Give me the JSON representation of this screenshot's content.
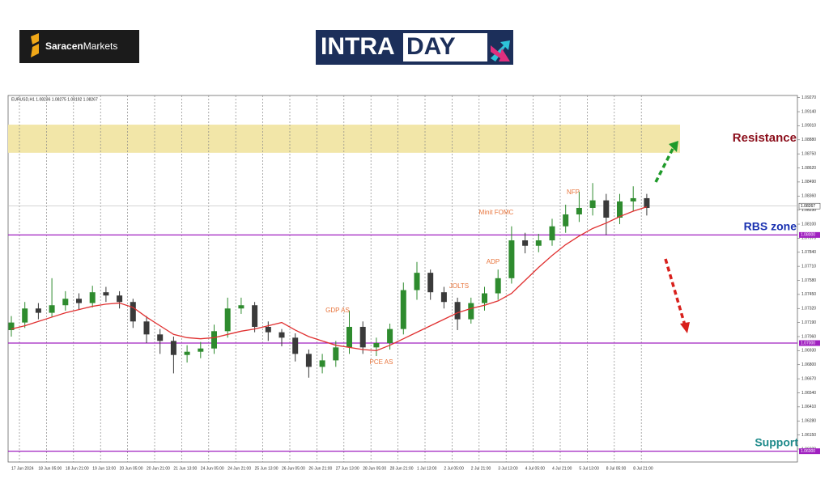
{
  "brand": {
    "left": "Saracen",
    "right": "Markets"
  },
  "banner": {
    "left": "INTRA",
    "right": "DAY"
  },
  "chart_data": {
    "type": "candlestick",
    "header": "EURUSD,H1  1.08236 1.08275 1.08192 1.08267",
    "categories": [
      "17 Jun 2024",
      null,
      "18 Jun 05:00",
      null,
      "18 Jun 21:00",
      null,
      "19 Jun 13:00",
      null,
      "20 Jun 05:00",
      null,
      "20 Jun 21:00",
      null,
      "21 Jun 13:00",
      null,
      "24 Jun 05:00",
      null,
      "24 Jun 21:00",
      null,
      "25 Jun 13:00",
      null,
      "26 Jun 05:00",
      null,
      "26 Jun 21:00",
      null,
      "27 Jun 13:00",
      null,
      "28 Jun 05:00",
      null,
      "28 Jun 21:00",
      null,
      "1 Jul 13:00",
      null,
      "2 Jul 05:00",
      null,
      "2 Jul 21:00",
      null,
      "3 Jul 13:00",
      null,
      "4 Jul 05:00",
      null,
      "4 Jul 21:00",
      null,
      "5 Jul 13:00",
      null,
      "8 Jul 05:00",
      null,
      "8 Jul 21:00",
      null
    ],
    "open": [
      1.0712,
      1.0719,
      1.0732,
      1.0728,
      1.0735,
      1.0741,
      1.0737,
      1.0747,
      1.0744,
      1.0738,
      1.072,
      1.0708,
      1.0702,
      1.0689,
      1.0692,
      1.0695,
      1.0711,
      1.0732,
      1.0735,
      1.0715,
      1.071,
      1.0705,
      1.069,
      1.0678,
      1.0684,
      1.0696,
      1.0715,
      1.0696,
      1.07,
      1.0713,
      1.0749,
      1.0765,
      1.0747,
      1.0738,
      1.0722,
      1.0737,
      1.0746,
      1.076,
      1.0795,
      1.079,
      1.0795,
      1.0808,
      1.0819,
      1.0825,
      1.0832,
      1.0816,
      1.0831,
      1.0834
    ],
    "high": [
      1.0725,
      1.0738,
      1.0737,
      1.076,
      1.0748,
      1.0746,
      1.0753,
      1.0752,
      1.0748,
      1.0741,
      1.0725,
      1.0713,
      1.0706,
      1.0698,
      1.0701,
      1.0717,
      1.0742,
      1.0742,
      1.0738,
      1.072,
      1.0713,
      1.0709,
      1.0694,
      1.069,
      1.0702,
      1.073,
      1.072,
      1.0705,
      1.0718,
      1.0756,
      1.0775,
      1.0768,
      1.0752,
      1.0742,
      1.0742,
      1.0752,
      1.0768,
      1.0808,
      1.0802,
      1.0801,
      1.0815,
      1.0828,
      1.084,
      1.0848,
      1.0838,
      1.0838,
      1.0845,
      1.0838
    ],
    "low": [
      1.0706,
      1.0714,
      1.0722,
      1.0724,
      1.073,
      1.0731,
      1.0733,
      1.0738,
      1.0732,
      1.0714,
      1.07,
      1.069,
      1.0672,
      1.0682,
      1.0686,
      1.069,
      1.0705,
      1.0727,
      1.071,
      1.0702,
      1.0697,
      1.0683,
      1.0668,
      1.0672,
      1.0678,
      1.069,
      1.069,
      1.0688,
      1.0694,
      1.0708,
      1.074,
      1.074,
      1.0732,
      1.0712,
      1.0718,
      1.073,
      1.074,
      1.0755,
      1.0783,
      1.0784,
      1.079,
      1.0802,
      1.0812,
      1.0818,
      1.08,
      1.081,
      1.0822,
      1.0818
    ],
    "close": [
      1.0719,
      1.0732,
      1.0728,
      1.0735,
      1.0741,
      1.0737,
      1.0747,
      1.0744,
      1.0738,
      1.072,
      1.0708,
      1.0702,
      1.0689,
      1.0692,
      1.0695,
      1.0711,
      1.0732,
      1.0735,
      1.0715,
      1.071,
      1.0705,
      1.069,
      1.0678,
      1.0684,
      1.0696,
      1.0715,
      1.0696,
      1.07,
      1.0713,
      1.0749,
      1.0765,
      1.0747,
      1.0738,
      1.0722,
      1.0737,
      1.0746,
      1.076,
      1.0795,
      1.079,
      1.0795,
      1.0808,
      1.0819,
      1.0825,
      1.0832,
      1.0816,
      1.0831,
      1.0834,
      1.0825
    ],
    "up_color": "#2e8b2e",
    "down_color": "#3a3a3a",
    "ma": [
      1.0713,
      1.0716,
      1.072,
      1.0724,
      1.0728,
      1.0731,
      1.0734,
      1.0736,
      1.0737,
      1.0733,
      1.0724,
      1.0716,
      1.0708,
      1.0705,
      1.0704,
      1.0705,
      1.0708,
      1.0711,
      1.0713,
      1.0716,
      1.0719,
      1.0712,
      1.0706,
      1.0702,
      1.0698,
      1.0696,
      1.0694,
      1.0693,
      1.0698,
      1.0704,
      1.071,
      1.0716,
      1.0722,
      1.0728,
      1.0732,
      1.0735,
      1.0739,
      1.0746,
      1.0758,
      1.077,
      1.0781,
      1.0791,
      1.0799,
      1.0806,
      1.0811,
      1.0817,
      1.0822,
      1.0826
    ],
    "ma_color": "#e03030",
    "ylim": [
      1.059,
      1.0929
    ],
    "yticks": [
      {
        "value": 1.0927,
        "label": "1.09270"
      },
      {
        "value": 1.0914,
        "label": "1.09140"
      },
      {
        "value": 1.0901,
        "label": "1.09010"
      },
      {
        "value": 1.0888,
        "label": "1.08880"
      },
      {
        "value": 1.0875,
        "label": "1.08750"
      },
      {
        "value": 1.0862,
        "label": "1.08620"
      },
      {
        "value": 1.0849,
        "label": "1.08490"
      },
      {
        "value": 1.0836,
        "label": "1.08360"
      },
      {
        "value": 1.0823,
        "label": "1.08230"
      },
      {
        "value": 1.081,
        "label": "1.08100"
      },
      {
        "value": 1.0797,
        "label": "1.07970"
      },
      {
        "value": 1.0784,
        "label": "1.07840"
      },
      {
        "value": 1.0771,
        "label": "1.07710"
      },
      {
        "value": 1.0758,
        "label": "1.07580"
      },
      {
        "value": 1.0745,
        "label": "1.07450"
      },
      {
        "value": 1.0732,
        "label": "1.07320"
      },
      {
        "value": 1.0719,
        "label": "1.07190"
      },
      {
        "value": 1.0706,
        "label": "1.07060"
      },
      {
        "value": 1.0693,
        "label": "1.06930"
      },
      {
        "value": 1.068,
        "label": "1.06800"
      },
      {
        "value": 1.0667,
        "label": "1.06670"
      },
      {
        "value": 1.0654,
        "label": "1.06540"
      },
      {
        "value": 1.0641,
        "label": "1.06410"
      },
      {
        "value": 1.0628,
        "label": "1.06280"
      },
      {
        "value": 1.0615,
        "label": "1.06150"
      },
      {
        "value": 1.0602,
        "label": "1.06020"
      }
    ],
    "levels": [
      {
        "value": 1.08,
        "label": "1.08000"
      },
      {
        "value": 1.07,
        "label": "1.07000"
      },
      {
        "value": 1.06,
        "label": "1.06000"
      }
    ],
    "level_color": "#a020c0",
    "current_price": {
      "value": 1.08267,
      "label": "1.08267"
    },
    "resistance_zone": [
      1.0876,
      1.0902
    ],
    "zone_color": "#f2e6a8",
    "annotations": [
      "GDP AS",
      "PCE AS",
      "JOLTS",
      "ADP",
      "Minit FOMC",
      "NFP"
    ],
    "zones": {
      "resistance": "Resistance",
      "rbs": "RBS zone",
      "support": "Support"
    }
  }
}
